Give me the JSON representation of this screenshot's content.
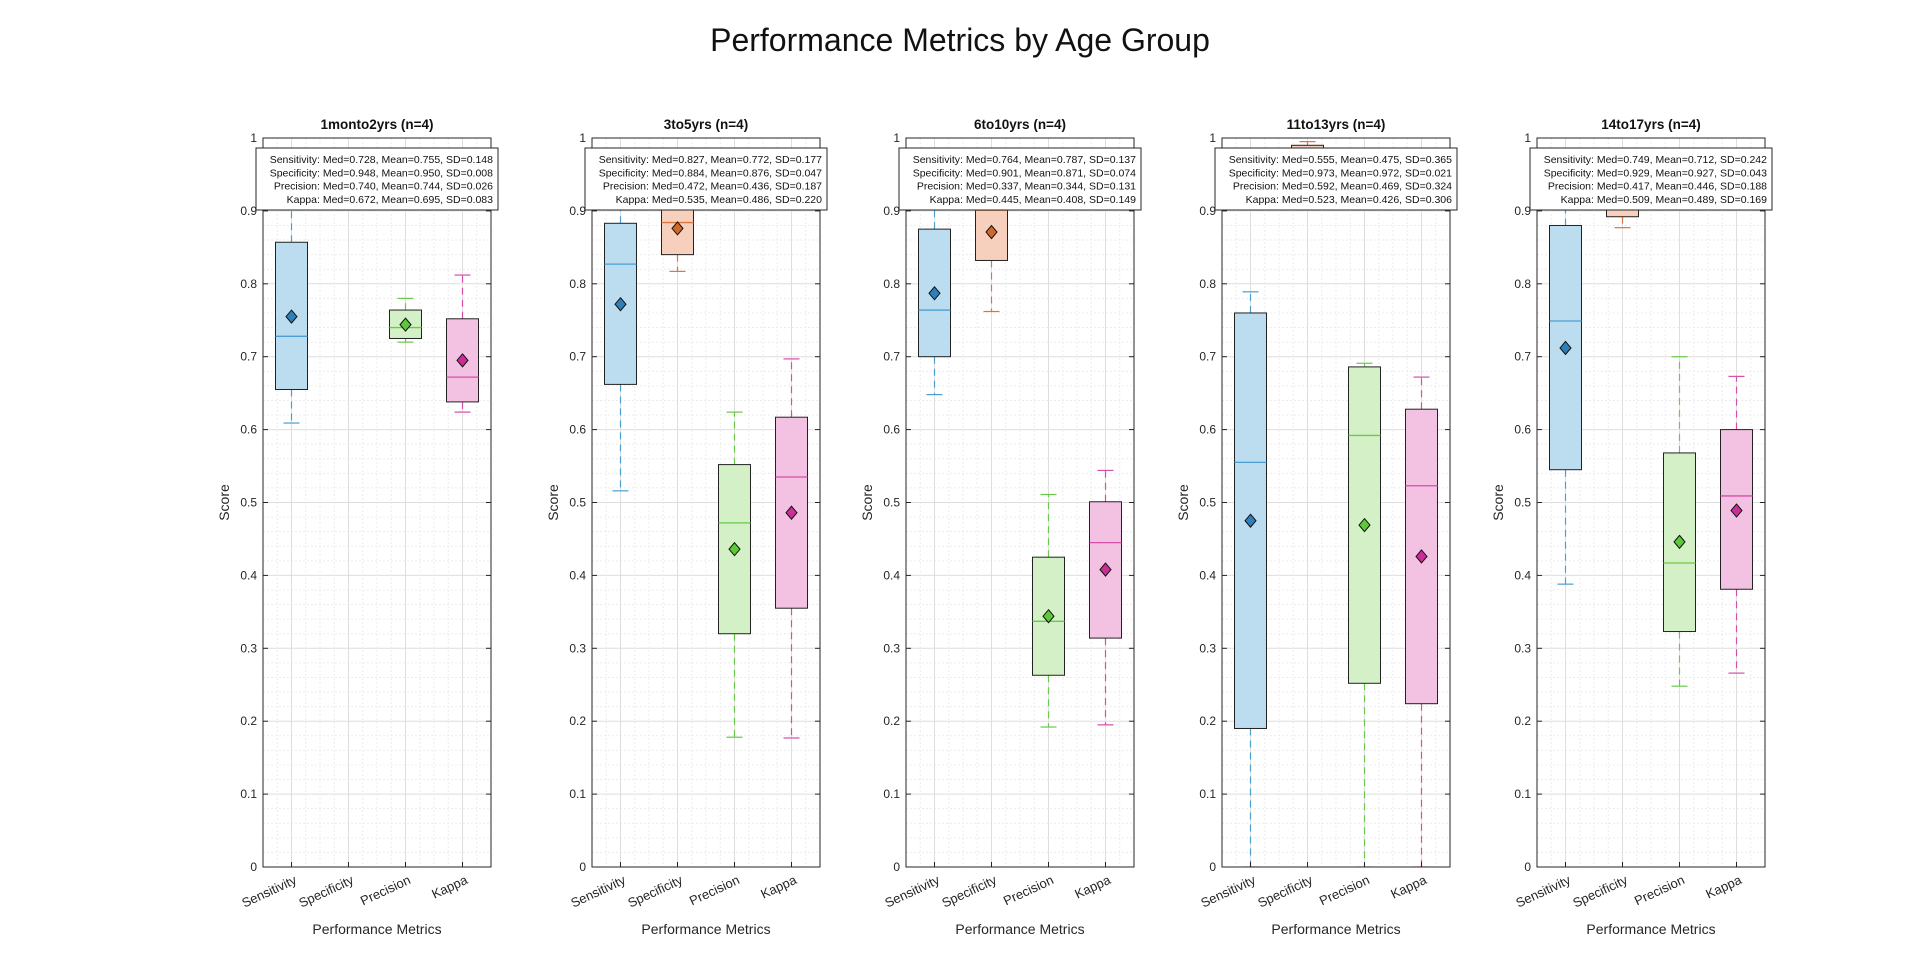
{
  "figure": {
    "title": "Performance Metrics by Age Group"
  },
  "colors": {
    "Sensitivity": {
      "fill": "#bcdcef",
      "line": "#4a9ed2",
      "marker": "#2f7fb8"
    },
    "Specificity": {
      "fill": "#f6d0bd",
      "line": "#d9763f",
      "marker": "#d2672c"
    },
    "Precision": {
      "fill": "#d4f0c6",
      "line": "#69c94b",
      "marker": "#5ec83b"
    },
    "Kappa": {
      "fill": "#f3c2e3",
      "line": "#d64ea8",
      "marker": "#cc2e98"
    }
  },
  "chart_data": [
    {
      "type": "box",
      "title": "1monto2yrs (n=4)",
      "xlabel": "Performance Metrics",
      "ylabel": "Score",
      "ylim": [
        0,
        1
      ],
      "yticks": [
        "0",
        "0.1",
        "0.2",
        "0.3",
        "0.4",
        "0.5",
        "0.6",
        "0.7",
        "0.8",
        "0.9",
        "1"
      ],
      "categories": [
        "Sensitivity",
        "Specificity",
        "Precision",
        "Kappa"
      ],
      "grid": true,
      "stats": [
        "Sensitivity: Med=0.728, Mean=0.755, SD=0.148",
        "Specificity: Med=0.948, Mean=0.950, SD=0.008",
        "Precision: Med=0.740, Mean=0.744, SD=0.026",
        "Kappa: Med=0.672, Mean=0.695, SD=0.083"
      ],
      "boxes": [
        {
          "name": "Sensitivity",
          "min": 0.609,
          "q1": 0.655,
          "median": 0.728,
          "q3": 0.857,
          "max": 0.95,
          "mean": 0.755
        },
        {
          "name": "Specificity",
          "min": 0.94,
          "q1": 0.944,
          "median": 0.948,
          "q3": 0.955,
          "max": 0.96,
          "mean": 0.95
        },
        {
          "name": "Precision",
          "min": 0.72,
          "q1": 0.725,
          "median": 0.74,
          "q3": 0.764,
          "max": 0.78,
          "mean": 0.744
        },
        {
          "name": "Kappa",
          "min": 0.624,
          "q1": 0.638,
          "median": 0.672,
          "q3": 0.752,
          "max": 0.812,
          "mean": 0.695
        }
      ]
    },
    {
      "type": "box",
      "title": "3to5yrs (n=4)",
      "xlabel": "Performance Metrics",
      "ylabel": "Score",
      "ylim": [
        0,
        1
      ],
      "yticks": [
        "0",
        "0.1",
        "0.2",
        "0.3",
        "0.4",
        "0.5",
        "0.6",
        "0.7",
        "0.8",
        "0.9",
        "1"
      ],
      "categories": [
        "Sensitivity",
        "Specificity",
        "Precision",
        "Kappa"
      ],
      "grid": true,
      "stats": [
        "Sensitivity: Med=0.827, Mean=0.772, SD=0.177",
        "Specificity: Med=0.884, Mean=0.876, SD=0.047",
        "Precision: Med=0.472, Mean=0.436, SD=0.187",
        "Kappa: Med=0.535, Mean=0.486, SD=0.220"
      ],
      "boxes": [
        {
          "name": "Sensitivity",
          "min": 0.516,
          "q1": 0.662,
          "median": 0.827,
          "q3": 0.883,
          "max": 0.93,
          "mean": 0.772
        },
        {
          "name": "Specificity",
          "min": 0.817,
          "q1": 0.84,
          "median": 0.884,
          "q3": 0.91,
          "max": 0.925,
          "mean": 0.876
        },
        {
          "name": "Precision",
          "min": 0.178,
          "q1": 0.32,
          "median": 0.472,
          "q3": 0.552,
          "max": 0.624,
          "mean": 0.436
        },
        {
          "name": "Kappa",
          "min": 0.177,
          "q1": 0.355,
          "median": 0.535,
          "q3": 0.617,
          "max": 0.697,
          "mean": 0.486
        }
      ]
    },
    {
      "type": "box",
      "title": "6to10yrs (n=4)",
      "xlabel": "Performance Metrics",
      "ylabel": "Score",
      "ylim": [
        0,
        1
      ],
      "yticks": [
        "0",
        "0.1",
        "0.2",
        "0.3",
        "0.4",
        "0.5",
        "0.6",
        "0.7",
        "0.8",
        "0.9",
        "1"
      ],
      "categories": [
        "Sensitivity",
        "Specificity",
        "Precision",
        "Kappa"
      ],
      "grid": true,
      "stats": [
        "Sensitivity: Med=0.764, Mean=0.787, SD=0.137",
        "Specificity: Med=0.901, Mean=0.871, SD=0.074",
        "Precision: Med=0.337, Mean=0.344, SD=0.131",
        "Kappa: Med=0.445, Mean=0.408, SD=0.149"
      ],
      "boxes": [
        {
          "name": "Sensitivity",
          "min": 0.648,
          "q1": 0.7,
          "median": 0.764,
          "q3": 0.875,
          "max": 0.93,
          "mean": 0.787
        },
        {
          "name": "Specificity",
          "min": 0.762,
          "q1": 0.832,
          "median": 0.901,
          "q3": 0.915,
          "max": 0.93,
          "mean": 0.871
        },
        {
          "name": "Precision",
          "min": 0.192,
          "q1": 0.263,
          "median": 0.337,
          "q3": 0.425,
          "max": 0.511,
          "mean": 0.344
        },
        {
          "name": "Kappa",
          "min": 0.195,
          "q1": 0.314,
          "median": 0.445,
          "q3": 0.501,
          "max": 0.544,
          "mean": 0.408
        }
      ]
    },
    {
      "type": "box",
      "title": "11to13yrs (n=4)",
      "xlabel": "Performance Metrics",
      "ylabel": "Score",
      "ylim": [
        0,
        1
      ],
      "yticks": [
        "0",
        "0.1",
        "0.2",
        "0.3",
        "0.4",
        "0.5",
        "0.6",
        "0.7",
        "0.8",
        "0.9",
        "1"
      ],
      "categories": [
        "Sensitivity",
        "Specificity",
        "Precision",
        "Kappa"
      ],
      "grid": true,
      "stats": [
        "Sensitivity: Med=0.555, Mean=0.475, SD=0.365",
        "Specificity: Med=0.973, Mean=0.972, SD=0.021",
        "Precision: Med=0.592, Mean=0.469, SD=0.324",
        "Kappa: Med=0.523, Mean=0.426, SD=0.306"
      ],
      "boxes": [
        {
          "name": "Sensitivity",
          "min": 0.0,
          "q1": 0.19,
          "median": 0.555,
          "q3": 0.76,
          "max": 0.789,
          "mean": 0.475
        },
        {
          "name": "Specificity",
          "min": 0.95,
          "q1": 0.96,
          "median": 0.973,
          "q3": 0.99,
          "max": 0.995,
          "mean": 0.972
        },
        {
          "name": "Precision",
          "min": 0.0,
          "q1": 0.252,
          "median": 0.592,
          "q3": 0.686,
          "max": 0.691,
          "mean": 0.469
        },
        {
          "name": "Kappa",
          "min": 0.0,
          "q1": 0.224,
          "median": 0.523,
          "q3": 0.628,
          "max": 0.672,
          "mean": 0.426
        }
      ]
    },
    {
      "type": "box",
      "title": "14to17yrs (n=4)",
      "xlabel": "Performance Metrics",
      "ylabel": "Score",
      "ylim": [
        0,
        1
      ],
      "yticks": [
        "0",
        "0.1",
        "0.2",
        "0.3",
        "0.4",
        "0.5",
        "0.6",
        "0.7",
        "0.8",
        "0.9",
        "1"
      ],
      "categories": [
        "Sensitivity",
        "Specificity",
        "Precision",
        "Kappa"
      ],
      "grid": true,
      "stats": [
        "Sensitivity: Med=0.749, Mean=0.712, SD=0.242",
        "Specificity: Med=0.929, Mean=0.927, SD=0.043",
        "Precision: Med=0.417, Mean=0.446, SD=0.188",
        "Kappa: Med=0.509, Mean=0.489, SD=0.169"
      ],
      "boxes": [
        {
          "name": "Sensitivity",
          "min": 0.388,
          "q1": 0.545,
          "median": 0.749,
          "q3": 0.88,
          "max": 0.93,
          "mean": 0.712
        },
        {
          "name": "Specificity",
          "min": 0.877,
          "q1": 0.892,
          "median": 0.929,
          "q3": 0.95,
          "max": 0.96,
          "mean": 0.927
        },
        {
          "name": "Precision",
          "min": 0.248,
          "q1": 0.323,
          "median": 0.417,
          "q3": 0.568,
          "max": 0.7,
          "mean": 0.446
        },
        {
          "name": "Kappa",
          "min": 0.266,
          "q1": 0.381,
          "median": 0.509,
          "q3": 0.6,
          "max": 0.673,
          "mean": 0.489
        }
      ]
    }
  ]
}
